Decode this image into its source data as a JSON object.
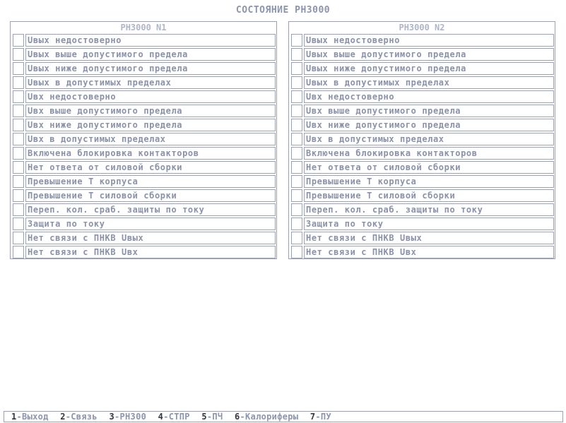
{
  "title": "СОСТОЯНИЕ РН3000",
  "panels": [
    {
      "title": "РН3000 N1",
      "rows": [
        "Uвых недостоверно",
        "Uвых выше допустимого предела",
        "Uвых ниже допустимого предела",
        "Uвых в допустимых пределах",
        "Uвх недостоверно",
        "Uвх выше допустимого предела",
        "Uвх ниже допустимого предела",
        "Uвх в допустимых пределах",
        "Включена блокировка контакторов",
        "Нет ответа от силовой сборки",
        "Превышение Т корпуса",
        "Превышение Т силовой сборки",
        "Переп. кол. сраб. защиты по току",
        "Защита по току",
        "Нет связи с ПНКВ Uвых",
        "Нет связи с ПНКВ Uвх"
      ]
    },
    {
      "title": "РН3000 N2",
      "rows": [
        "Uвых недостоверно",
        "Uвых выше допустимого предела",
        "Uвых ниже допустимого предела",
        "Uвых в допустимых пределах",
        "Uвх недостоверно",
        "Uвх выше допустимого предела",
        "Uвх ниже допустимого предела",
        "Uвх в допустимых пределах",
        "Включена блокировка контакторов",
        "Нет ответа от силовой сборки",
        "Превышение Т корпуса",
        "Превышение Т силовой сборки",
        "Переп. кол. сраб. защиты по току",
        "Защита по току",
        "Нет связи с ПНКВ Uвых",
        "Нет связи с ПНКВ Uвх"
      ]
    }
  ],
  "footer": [
    {
      "key": "1",
      "label": "-Выход"
    },
    {
      "key": "2",
      "label": "-Связь"
    },
    {
      "key": "3",
      "label": "-РН300"
    },
    {
      "key": "4",
      "label": "-СТПР"
    },
    {
      "key": "5",
      "label": "-ПЧ"
    },
    {
      "key": "6",
      "label": "-Калориферы"
    },
    {
      "key": "7",
      "label": "-ПУ"
    }
  ]
}
